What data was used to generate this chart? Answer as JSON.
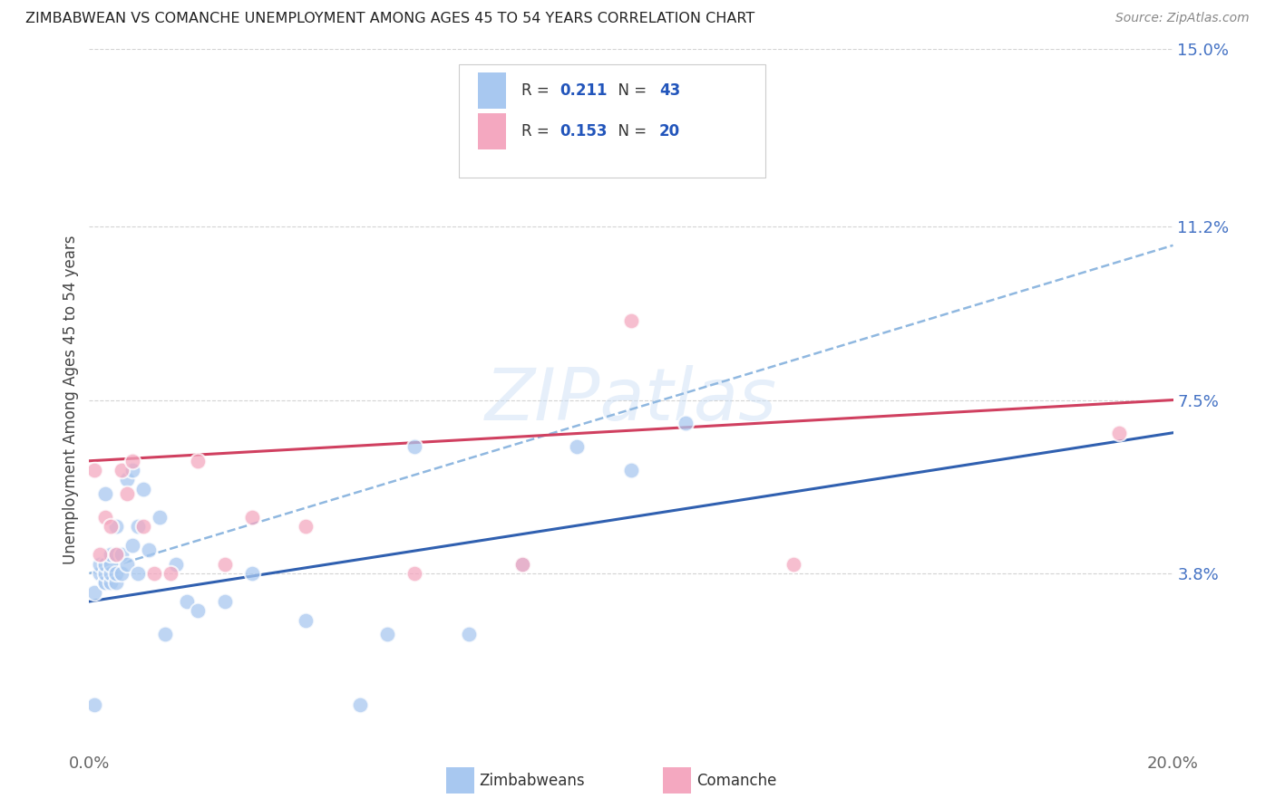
{
  "title": "ZIMBABWEAN VS COMANCHE UNEMPLOYMENT AMONG AGES 45 TO 54 YEARS CORRELATION CHART",
  "source": "Source: ZipAtlas.com",
  "ylabel": "Unemployment Among Ages 45 to 54 years",
  "xlim": [
    0.0,
    0.2
  ],
  "ylim": [
    0.0,
    0.15
  ],
  "xticks": [
    0.0,
    0.05,
    0.1,
    0.15,
    0.2
  ],
  "xticklabels": [
    "0.0%",
    "",
    "",
    "",
    "20.0%"
  ],
  "ytick_labels_right": [
    "3.8%",
    "7.5%",
    "11.2%",
    "15.0%"
  ],
  "ytick_values_right": [
    0.038,
    0.075,
    0.112,
    0.15
  ],
  "watermark": "ZIPatlas",
  "blue_color": "#a8c8f0",
  "pink_color": "#f4a8c0",
  "line_blue": "#3060b0",
  "line_pink": "#d04060",
  "line_dash_color": "#90b8e0",
  "grid_color": "#c8c8c8",
  "zim_x": [
    0.001,
    0.001,
    0.002,
    0.002,
    0.003,
    0.003,
    0.003,
    0.003,
    0.003,
    0.004,
    0.004,
    0.004,
    0.004,
    0.005,
    0.005,
    0.005,
    0.005,
    0.006,
    0.006,
    0.007,
    0.007,
    0.008,
    0.008,
    0.009,
    0.009,
    0.01,
    0.011,
    0.013,
    0.014,
    0.016,
    0.018,
    0.02,
    0.025,
    0.03,
    0.04,
    0.05,
    0.055,
    0.06,
    0.07,
    0.08,
    0.09,
    0.1,
    0.11
  ],
  "zim_y": [
    0.034,
    0.01,
    0.038,
    0.04,
    0.036,
    0.036,
    0.038,
    0.04,
    0.055,
    0.036,
    0.038,
    0.04,
    0.042,
    0.036,
    0.038,
    0.042,
    0.048,
    0.038,
    0.042,
    0.04,
    0.058,
    0.044,
    0.06,
    0.048,
    0.038,
    0.056,
    0.043,
    0.05,
    0.025,
    0.04,
    0.032,
    0.03,
    0.032,
    0.038,
    0.028,
    0.01,
    0.025,
    0.065,
    0.025,
    0.04,
    0.065,
    0.06,
    0.07
  ],
  "com_x": [
    0.001,
    0.002,
    0.003,
    0.004,
    0.005,
    0.006,
    0.007,
    0.008,
    0.01,
    0.012,
    0.015,
    0.02,
    0.025,
    0.03,
    0.04,
    0.06,
    0.08,
    0.1,
    0.13,
    0.19
  ],
  "com_y": [
    0.06,
    0.042,
    0.05,
    0.048,
    0.042,
    0.06,
    0.055,
    0.062,
    0.048,
    0.038,
    0.038,
    0.062,
    0.04,
    0.05,
    0.048,
    0.038,
    0.04,
    0.092,
    0.04,
    0.068
  ],
  "blue_line_start_y": 0.032,
  "blue_line_end_y": 0.068,
  "pink_line_start_y": 0.062,
  "pink_line_end_y": 0.075,
  "dash_line_start_y": 0.038,
  "dash_line_end_y": 0.108
}
